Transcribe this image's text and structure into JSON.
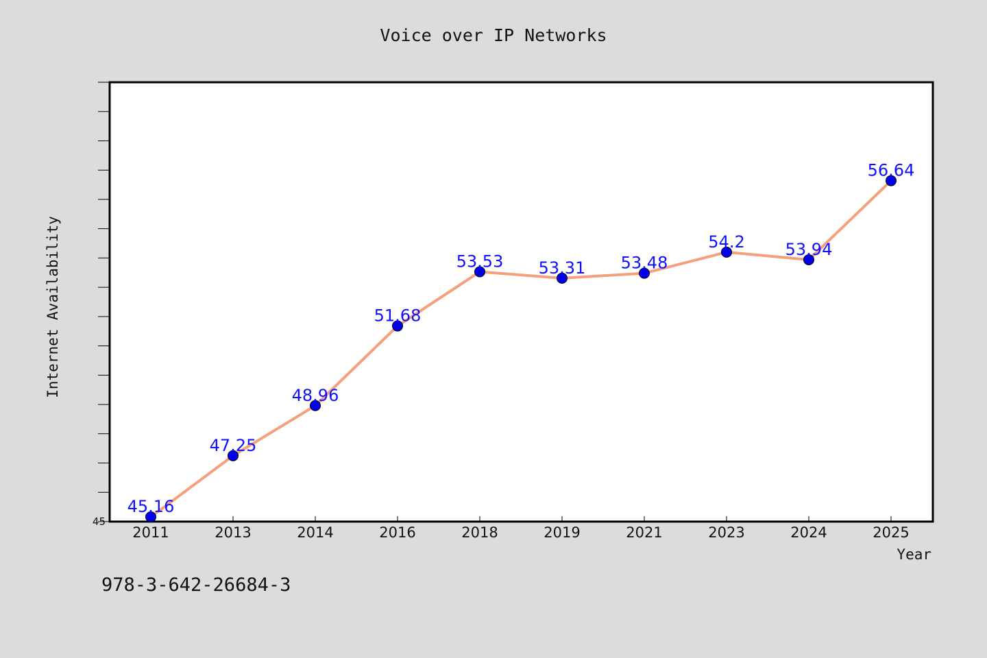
{
  "chart_data": {
    "type": "line",
    "title": "Voice over IP Networks",
    "xlabel": "Year",
    "ylabel": "Internet Availability",
    "categories": [
      "2011",
      "2013",
      "2014",
      "2016",
      "2018",
      "2019",
      "2021",
      "2023",
      "2024",
      "2025"
    ],
    "series": [
      {
        "values": [
          45.16,
          47.25,
          48.96,
          51.68,
          53.53,
          53.31,
          53.48,
          54.2,
          53.94,
          56.64
        ],
        "color": "#f4a07c",
        "marker_color": "#0000ee"
      }
    ],
    "data_labels": [
      "45.16",
      "47.25",
      "48.96",
      "51.68",
      "53.53",
      "53.31",
      "53.48",
      "54.2",
      "53.94",
      "56.64"
    ],
    "ylim": [
      45,
      60
    ],
    "y_tick_labels": [
      "45"
    ],
    "grid": false,
    "legend": "none"
  },
  "footnote": "978-3-642-26684-3"
}
